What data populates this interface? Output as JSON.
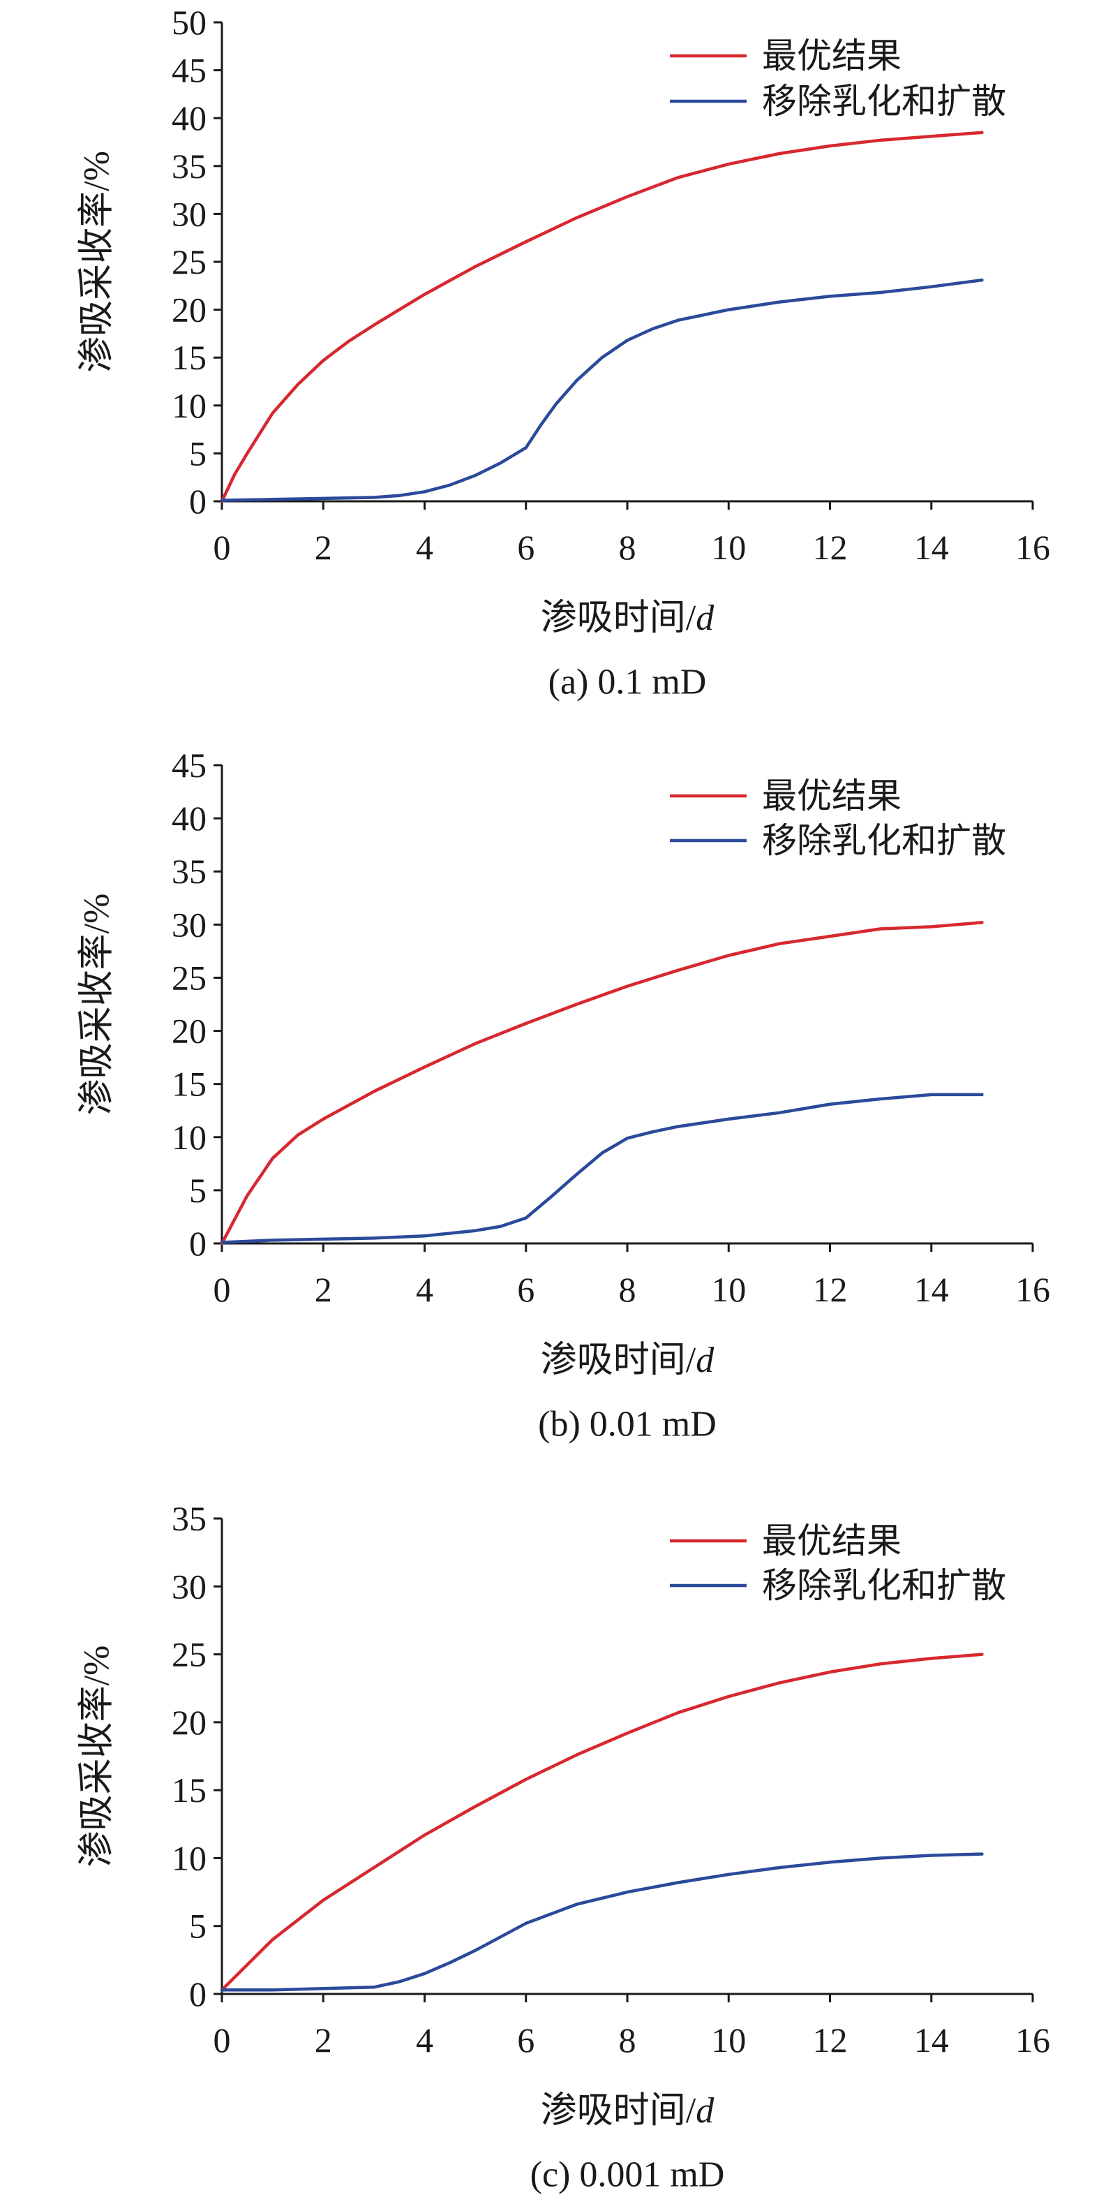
{
  "chart_data": [
    {
      "type": "line",
      "caption": "(a) 0.1 mD",
      "xlabel": "渗吸时间/d",
      "ylabel": "渗吸采收率/%",
      "xlim": [
        0,
        16
      ],
      "ylim": [
        0,
        50
      ],
      "xticks": [
        0,
        2,
        4,
        6,
        8,
        10,
        12,
        14,
        16
      ],
      "yticks": [
        0,
        5,
        10,
        15,
        20,
        25,
        30,
        35,
        40,
        45,
        50
      ],
      "grid": false,
      "legend_position": "top-right",
      "series": [
        {
          "name": "最优结果",
          "color": "#d7282f",
          "x": [
            0,
            0.25,
            0.5,
            1,
            1.5,
            2,
            2.5,
            3,
            4,
            5,
            6,
            7,
            8,
            9,
            10,
            11,
            12,
            13,
            14,
            15
          ],
          "y": [
            0,
            2.8,
            5.0,
            9.2,
            12.2,
            14.7,
            16.7,
            18.4,
            21.6,
            24.5,
            27.1,
            29.6,
            31.8,
            33.8,
            35.2,
            36.3,
            37.1,
            37.7,
            38.1,
            38.5
          ]
        },
        {
          "name": "移除乳化和扩散",
          "color": "#2b4a9b",
          "x": [
            0,
            1,
            2,
            3,
            3.5,
            4,
            4.5,
            5,
            5.5,
            6,
            6.3,
            6.6,
            7,
            7.5,
            8,
            8.5,
            9,
            10,
            11,
            12,
            13,
            14,
            15
          ],
          "y": [
            0.1,
            0.2,
            0.3,
            0.4,
            0.6,
            1.0,
            1.7,
            2.7,
            4.0,
            5.6,
            8.0,
            10.2,
            12.6,
            15.0,
            16.8,
            18.0,
            18.9,
            20.0,
            20.8,
            21.4,
            21.8,
            22.4,
            23.1
          ]
        }
      ]
    },
    {
      "type": "line",
      "caption": "(b) 0.01 mD",
      "xlabel": "渗吸时间/d",
      "ylabel": "渗吸采收率/%",
      "xlim": [
        0,
        16
      ],
      "ylim": [
        0,
        45
      ],
      "xticks": [
        0,
        2,
        4,
        6,
        8,
        10,
        12,
        14,
        16
      ],
      "yticks": [
        0,
        5,
        10,
        15,
        20,
        25,
        30,
        35,
        40,
        45
      ],
      "grid": false,
      "legend_position": "top-right",
      "series": [
        {
          "name": "最优结果",
          "color": "#d7282f",
          "x": [
            0,
            0.5,
            1,
            1.5,
            2,
            3,
            4,
            5,
            6,
            7,
            8,
            9,
            10,
            11,
            12,
            13,
            14,
            15
          ],
          "y": [
            0,
            4.5,
            8.0,
            10.2,
            11.7,
            14.3,
            16.6,
            18.8,
            20.7,
            22.5,
            24.2,
            25.7,
            27.1,
            28.2,
            28.9,
            29.6,
            29.8,
            30.2
          ]
        },
        {
          "name": "移除乳化和扩散",
          "color": "#2b4a9b",
          "x": [
            0,
            1,
            2,
            3,
            4,
            5,
            5.5,
            6,
            6.5,
            7,
            7.5,
            8,
            8.5,
            9,
            10,
            11,
            12,
            13,
            14,
            15
          ],
          "y": [
            0.1,
            0.3,
            0.4,
            0.5,
            0.7,
            1.2,
            1.6,
            2.4,
            4.4,
            6.5,
            8.5,
            9.9,
            10.5,
            11.0,
            11.7,
            12.3,
            13.1,
            13.6,
            14.0,
            14.0
          ]
        }
      ]
    },
    {
      "type": "line",
      "caption": "(c) 0.001 mD",
      "xlabel": "渗吸时间/d",
      "ylabel": "渗吸采收率/%",
      "xlim": [
        0,
        16
      ],
      "ylim": [
        0,
        35
      ],
      "xticks": [
        0,
        2,
        4,
        6,
        8,
        10,
        12,
        14,
        16
      ],
      "yticks": [
        0,
        5,
        10,
        15,
        20,
        25,
        30,
        35
      ],
      "grid": false,
      "legend_position": "top-right",
      "series": [
        {
          "name": "最优结果",
          "color": "#d7282f",
          "x": [
            0,
            1,
            2,
            3,
            4,
            5,
            6,
            7,
            8,
            9,
            10,
            11,
            12,
            13,
            14,
            15
          ],
          "y": [
            0.3,
            4.0,
            6.9,
            9.3,
            11.7,
            13.8,
            15.8,
            17.6,
            19.2,
            20.7,
            21.9,
            22.9,
            23.7,
            24.3,
            24.7,
            25.0
          ]
        },
        {
          "name": "移除乳化和扩散",
          "color": "#2b4a9b",
          "x": [
            0,
            1,
            2,
            3,
            3.5,
            4,
            4.5,
            5,
            5.5,
            6,
            7,
            8,
            9,
            10,
            11,
            12,
            13,
            14,
            15
          ],
          "y": [
            0.3,
            0.3,
            0.4,
            0.5,
            0.9,
            1.5,
            2.3,
            3.2,
            4.2,
            5.2,
            6.6,
            7.5,
            8.2,
            8.8,
            9.3,
            9.7,
            10.0,
            10.2,
            10.3
          ]
        }
      ]
    }
  ]
}
